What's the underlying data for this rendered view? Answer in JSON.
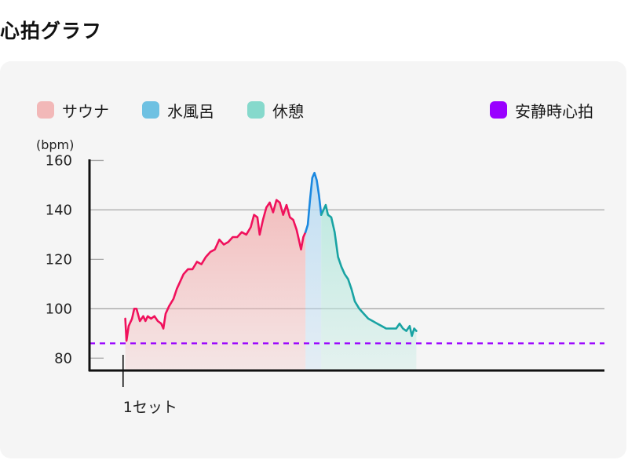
{
  "page": {
    "title": "心拍グラフ"
  },
  "legend": [
    {
      "label": "サウナ",
      "color": "#f2b8b8"
    },
    {
      "label": "水風呂",
      "color": "#6ec1e2"
    },
    {
      "label": "休憩",
      "color": "#86d9cc"
    },
    {
      "label": "安静時心拍",
      "color": "#9900ff"
    }
  ],
  "chart_data": {
    "type": "line",
    "ylabel": "(bpm)",
    "ylim": [
      75,
      163
    ],
    "yticks": [
      80,
      100,
      120,
      140,
      160
    ],
    "xticks": [
      {
        "x": 0,
        "label": "1セット"
      }
    ],
    "xlim": [
      -1.5,
      21.5
    ],
    "grid": "horizontal",
    "legend_position": "top",
    "resting_heart_rate": 86,
    "series": [
      {
        "name": "サウナ",
        "color": "#f0115c",
        "fill": "#f2b8b8",
        "points": [
          [
            0.1,
            96
          ],
          [
            0.15,
            87
          ],
          [
            0.25,
            93
          ],
          [
            0.4,
            96
          ],
          [
            0.5,
            100
          ],
          [
            0.6,
            100
          ],
          [
            0.75,
            95
          ],
          [
            0.9,
            97
          ],
          [
            1.0,
            95
          ],
          [
            1.1,
            97
          ],
          [
            1.25,
            96
          ],
          [
            1.4,
            97
          ],
          [
            1.55,
            95
          ],
          [
            1.7,
            94
          ],
          [
            1.8,
            92
          ],
          [
            1.9,
            98
          ],
          [
            2.05,
            101
          ],
          [
            2.25,
            104
          ],
          [
            2.4,
            108
          ],
          [
            2.55,
            111
          ],
          [
            2.7,
            114
          ],
          [
            2.9,
            116
          ],
          [
            3.1,
            116
          ],
          [
            3.3,
            119
          ],
          [
            3.5,
            118
          ],
          [
            3.7,
            121
          ],
          [
            3.9,
            123
          ],
          [
            4.1,
            124
          ],
          [
            4.3,
            128
          ],
          [
            4.5,
            126
          ],
          [
            4.7,
            127
          ],
          [
            4.9,
            129
          ],
          [
            5.1,
            129
          ],
          [
            5.3,
            131
          ],
          [
            5.5,
            130
          ],
          [
            5.7,
            133
          ],
          [
            5.85,
            138
          ],
          [
            6.0,
            137
          ],
          [
            6.1,
            130
          ],
          [
            6.25,
            136
          ],
          [
            6.4,
            141
          ],
          [
            6.55,
            143
          ],
          [
            6.7,
            139
          ],
          [
            6.85,
            144
          ],
          [
            7.0,
            143
          ],
          [
            7.15,
            138
          ],
          [
            7.3,
            142
          ],
          [
            7.45,
            137
          ],
          [
            7.6,
            136
          ],
          [
            7.75,
            132
          ],
          [
            7.85,
            128
          ],
          [
            7.95,
            124
          ],
          [
            8.05,
            129
          ],
          [
            8.15,
            131
          ]
        ]
      },
      {
        "name": "水風呂",
        "color": "#1a88e0",
        "fill": "#bcdcf2",
        "points": [
          [
            8.15,
            131
          ],
          [
            8.25,
            134
          ],
          [
            8.35,
            144
          ],
          [
            8.45,
            153
          ],
          [
            8.55,
            155
          ],
          [
            8.65,
            152
          ],
          [
            8.75,
            146
          ],
          [
            8.85,
            138
          ]
        ]
      },
      {
        "name": "休憩",
        "color": "#19a3a3",
        "fill": "#bde9e0",
        "points": [
          [
            8.85,
            138
          ],
          [
            8.95,
            140
          ],
          [
            9.05,
            142
          ],
          [
            9.15,
            138
          ],
          [
            9.3,
            137
          ],
          [
            9.45,
            131
          ],
          [
            9.6,
            121
          ],
          [
            9.75,
            117
          ],
          [
            9.9,
            114
          ],
          [
            10.05,
            112
          ],
          [
            10.2,
            108
          ],
          [
            10.35,
            103
          ],
          [
            10.55,
            100
          ],
          [
            10.75,
            98
          ],
          [
            10.95,
            96
          ],
          [
            11.15,
            95
          ],
          [
            11.35,
            94
          ],
          [
            11.55,
            93
          ],
          [
            11.75,
            92
          ],
          [
            12.0,
            92
          ],
          [
            12.2,
            92
          ],
          [
            12.35,
            94
          ],
          [
            12.5,
            92
          ],
          [
            12.65,
            91
          ],
          [
            12.8,
            93
          ],
          [
            12.9,
            89
          ],
          [
            13.0,
            92
          ],
          [
            13.1,
            91
          ]
        ]
      }
    ]
  }
}
